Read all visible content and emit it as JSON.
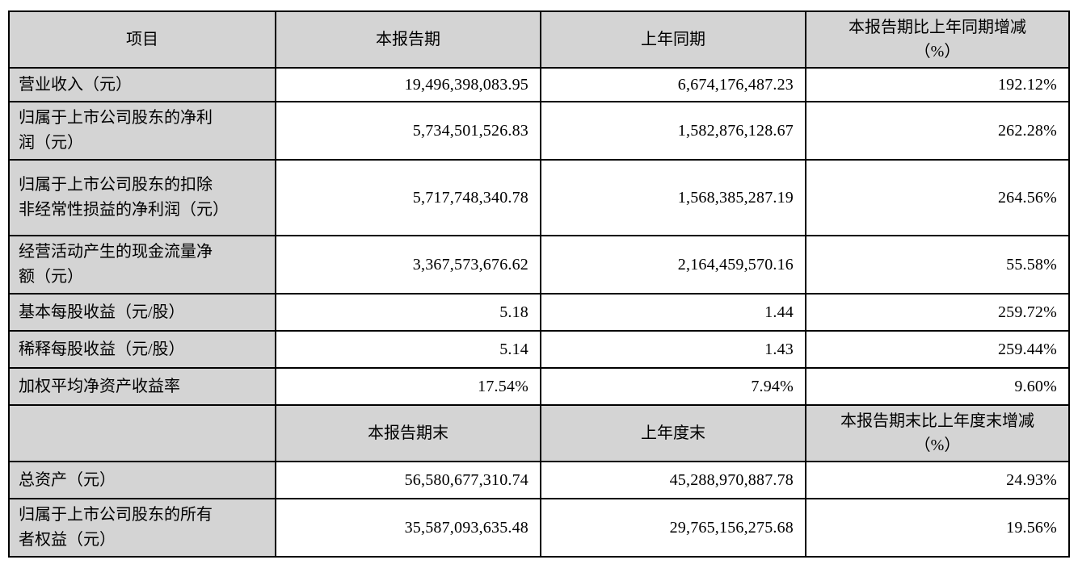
{
  "colors": {
    "header_bg": "#d4d4d4",
    "label_bg": "#d4d4d4",
    "value_bg": "#ffffff",
    "border": "#000000",
    "text": "#000000"
  },
  "table": {
    "period_header": {
      "item": "项目",
      "current": "本报告期",
      "prior": "上年同期",
      "change_line1": "本报告期比上年同期增减",
      "change_line2": "（%）"
    },
    "period_rows": [
      {
        "label": "营业收入（元）",
        "current": "19,496,398,083.95",
        "prior": "6,674,176,487.23",
        "change": "192.12%"
      },
      {
        "label": "归属于上市公司股东的净利润（元）",
        "current": "5,734,501,526.83",
        "prior": "1,582,876,128.67",
        "change": "262.28%"
      },
      {
        "label": "归属于上市公司股东的扣除非经常性损益的净利润（元）",
        "current": "5,717,748,340.78",
        "prior": "1,568,385,287.19",
        "change": "264.56%"
      },
      {
        "label": "经营活动产生的现金流量净额（元）",
        "current": "3,367,573,676.62",
        "prior": "2,164,459,570.16",
        "change": "55.58%"
      },
      {
        "label": "基本每股收益（元/股）",
        "current": "5.18",
        "prior": "1.44",
        "change": "259.72%"
      },
      {
        "label": "稀释每股收益（元/股）",
        "current": "5.14",
        "prior": "1.43",
        "change": "259.44%"
      },
      {
        "label": "加权平均净资产收益率",
        "current": "17.54%",
        "prior": "7.94%",
        "change": "9.60%"
      }
    ],
    "end_header": {
      "item": "",
      "current": "本报告期末",
      "prior": "上年度末",
      "change_line1": "本报告期末比上年度末增减",
      "change_line2": "（%）"
    },
    "end_rows": [
      {
        "label": "总资产（元）",
        "current": "56,580,677,310.74",
        "prior": "45,288,970,887.78",
        "change": "24.93%"
      },
      {
        "label": "归属于上市公司股东的所有者权益（元）",
        "current": "35,587,093,635.48",
        "prior": "29,765,156,275.68",
        "change": "19.56%"
      }
    ]
  }
}
